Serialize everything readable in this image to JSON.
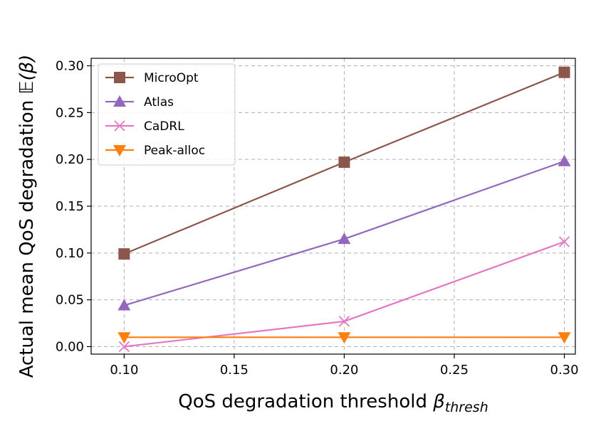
{
  "chart_data": {
    "type": "line",
    "xlabel": "QoS degradation threshold ",
    "xlabel_symbol": "β",
    "xlabel_subscript": "thresh",
    "ylabel": "Actual mean QoS degradation ",
    "ylabel_symbol": "𝔼(β)",
    "x_ticks": [
      "0.10",
      "0.15",
      "0.20",
      "0.25",
      "0.30"
    ],
    "y_ticks": [
      "0.00",
      "0.05",
      "0.10",
      "0.15",
      "0.20",
      "0.25",
      "0.30"
    ],
    "xlim": [
      0.085,
      0.305
    ],
    "ylim": [
      -0.008,
      0.308
    ],
    "grid": true,
    "legend_position": "top-left",
    "x": [
      0.1,
      0.2,
      0.3
    ],
    "series": [
      {
        "name": "MicroOpt",
        "values": [
          0.099,
          0.197,
          0.293
        ],
        "color": "#8c564b",
        "marker": "square"
      },
      {
        "name": "Atlas",
        "values": [
          0.044,
          0.115,
          0.198
        ],
        "color": "#9467bd",
        "marker": "triangle-up"
      },
      {
        "name": "CaDRL",
        "values": [
          0.0,
          0.027,
          0.112
        ],
        "color": "#e377c2",
        "marker": "x"
      },
      {
        "name": "Peak-alloc",
        "values": [
          0.01,
          0.01,
          0.01
        ],
        "color": "#ff7f0e",
        "marker": "triangle-down"
      }
    ]
  }
}
